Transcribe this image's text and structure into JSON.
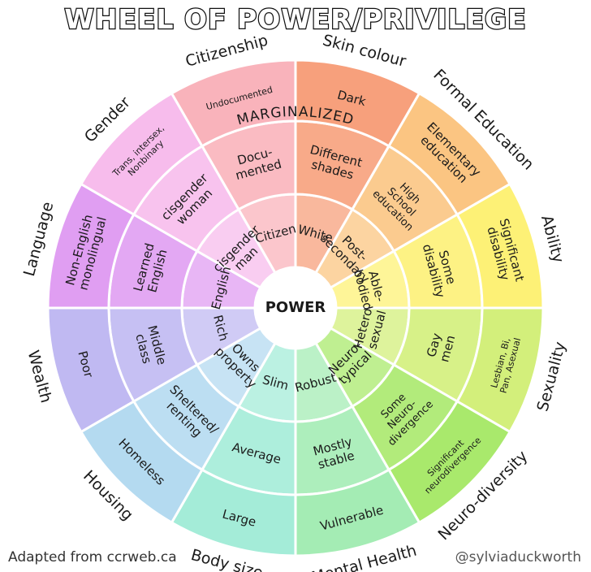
{
  "title": "WHEEL OF POWER/PRIVILEGE",
  "ring_labels": {
    "outer": "MARGINALIZED",
    "center": "POWER"
  },
  "credits": {
    "left": "Adapted from ccrweb.ca",
    "right": "@sylviaduckworth"
  },
  "colors": {
    "stroke": "#ffffff",
    "ink": "#1a1a1a"
  },
  "categories": [
    {
      "name": "Skin colour",
      "color": "#f7a07c",
      "levels": [
        [
          "White"
        ],
        [
          "Different",
          "shades"
        ],
        [
          "Dark"
        ]
      ]
    },
    {
      "name": "Formal Education",
      "color": "#fbc582",
      "levels": [
        [
          "Post-",
          "secondary"
        ],
        [
          "High",
          "School",
          "education"
        ],
        [
          "Elementary",
          "education"
        ]
      ]
    },
    {
      "name": "Ability",
      "color": "#fdf176",
      "levels": [
        [
          "Able-",
          "bodied"
        ],
        [
          "Some",
          "disability"
        ],
        [
          "Significant",
          "disability"
        ]
      ]
    },
    {
      "name": "Sexuality",
      "color": "#d3ef7b",
      "levels": [
        [
          "Hetero-",
          "sexual"
        ],
        [
          "Gay",
          "men"
        ],
        [
          "Lesbian, Bi,",
          "Pan, Asexual"
        ]
      ]
    },
    {
      "name": "Neuro-diversity",
      "color": "#a9e96c",
      "levels": [
        [
          "Neuro-",
          "typical"
        ],
        [
          "Some",
          "Neuro-",
          "divergence"
        ],
        [
          "Significant",
          "neurodivergence"
        ]
      ]
    },
    {
      "name": "Mental Health",
      "color": "#a4ecb4",
      "levels": [
        [
          "Robust"
        ],
        [
          "Mostly",
          "stable"
        ],
        [
          "Vulnerable"
        ]
      ]
    },
    {
      "name": "Body size",
      "color": "#a4ecd8",
      "levels": [
        [
          "Slim"
        ],
        [
          "Average"
        ],
        [
          "Large"
        ]
      ]
    },
    {
      "name": "Housing",
      "color": "#b4daf0",
      "levels": [
        [
          "Owns",
          "property"
        ],
        [
          "Sheltered/",
          "renting"
        ],
        [
          "Homeless"
        ]
      ]
    },
    {
      "name": "Wealth",
      "color": "#c0b9f2",
      "levels": [
        [
          "Rich"
        ],
        [
          "Middle",
          "class"
        ],
        [
          "Poor"
        ]
      ]
    },
    {
      "name": "Language",
      "color": "#e09ef2",
      "levels": [
        [
          "English"
        ],
        [
          "Learned",
          "English"
        ],
        [
          "Non-English",
          "monolingual"
        ]
      ]
    },
    {
      "name": "Gender",
      "color": "#f7bcec",
      "levels": [
        [
          "cisgender",
          "man"
        ],
        [
          "cisgender",
          "woman"
        ],
        [
          "Trans, intersex,",
          "Nonbinary"
        ]
      ]
    },
    {
      "name": "Citizenship",
      "color": "#f9b3bb",
      "levels": [
        [
          "Citizen"
        ],
        [
          "Docu-",
          "mented"
        ],
        [
          "Undocumented"
        ]
      ]
    }
  ]
}
